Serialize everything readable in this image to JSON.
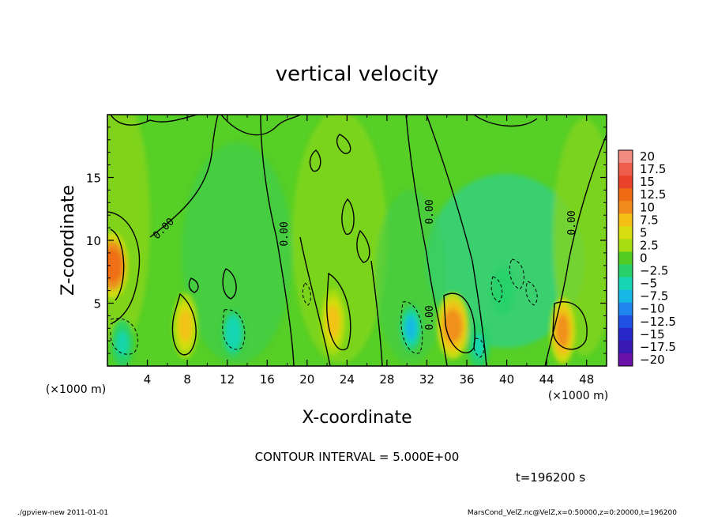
{
  "chart_data": {
    "type": "heatmap",
    "title": "vertical velocity",
    "xlabel": "X-coordinate",
    "ylabel": "Z-coordinate",
    "x_unit_label": "(×1000 m)",
    "y_unit_label": "(×1000 m)",
    "xlim": [
      0,
      50
    ],
    "ylim": [
      0,
      20
    ],
    "x_ticks": [
      "4",
      "8",
      "12",
      "16",
      "20",
      "24",
      "28",
      "32",
      "36",
      "40",
      "44",
      "48"
    ],
    "y_ticks": [
      "5",
      "10",
      "15"
    ],
    "contour_label": "0.00",
    "colorbar": {
      "labels": [
        "20",
        "17.5",
        "15",
        "12.5",
        "10",
        "7.5",
        "5",
        "2.5",
        "0",
        "−2.5",
        "−5",
        "−7.5",
        "−10",
        "−12.5",
        "−15",
        "−17.5",
        "−20"
      ],
      "colors": [
        "#f28b82",
        "#ee5d4a",
        "#e8422a",
        "#f06a12",
        "#f08c1c",
        "#f5c014",
        "#d8dd0f",
        "#a8dc12",
        "#52cc22",
        "#27d06a",
        "#18d6b4",
        "#18b8e6",
        "#1e86ee",
        "#2050e6",
        "#2828c8",
        "#3a18b4",
        "#6a12aa"
      ]
    },
    "features": [
      {
        "kind": "updraft",
        "x": 0.5,
        "z": 8.0,
        "value": 12
      },
      {
        "kind": "updraft",
        "x": 7.8,
        "z": 3.2,
        "value": 7
      },
      {
        "kind": "updraft",
        "x": 22.6,
        "z": 3.5,
        "value": 8
      },
      {
        "kind": "updraft",
        "x": 34.6,
        "z": 3.2,
        "value": 10
      },
      {
        "kind": "updraft",
        "x": 45.6,
        "z": 2.8,
        "value": 9
      },
      {
        "kind": "downdraft",
        "x": 1.5,
        "z": 1.8,
        "value": -5
      },
      {
        "kind": "downdraft",
        "x": 12.6,
        "z": 2.6,
        "value": -6
      },
      {
        "kind": "downdraft",
        "x": 30.4,
        "z": 3.0,
        "value": -8
      },
      {
        "kind": "downdraft",
        "x": 37.2,
        "z": 1.6,
        "value": -5
      },
      {
        "kind": "downdraft",
        "x": 39.6,
        "z": 6.0,
        "value": -3
      }
    ]
  },
  "annotations": {
    "contour_interval": "CONTOUR INTERVAL = 5.000E+00",
    "time": "t=196200 s"
  },
  "footer": {
    "left": "./gpview-new   2011-01-01",
    "right": "MarsCond_VelZ.nc@VelZ,x=0:50000,z=0:20000,t=196200"
  }
}
